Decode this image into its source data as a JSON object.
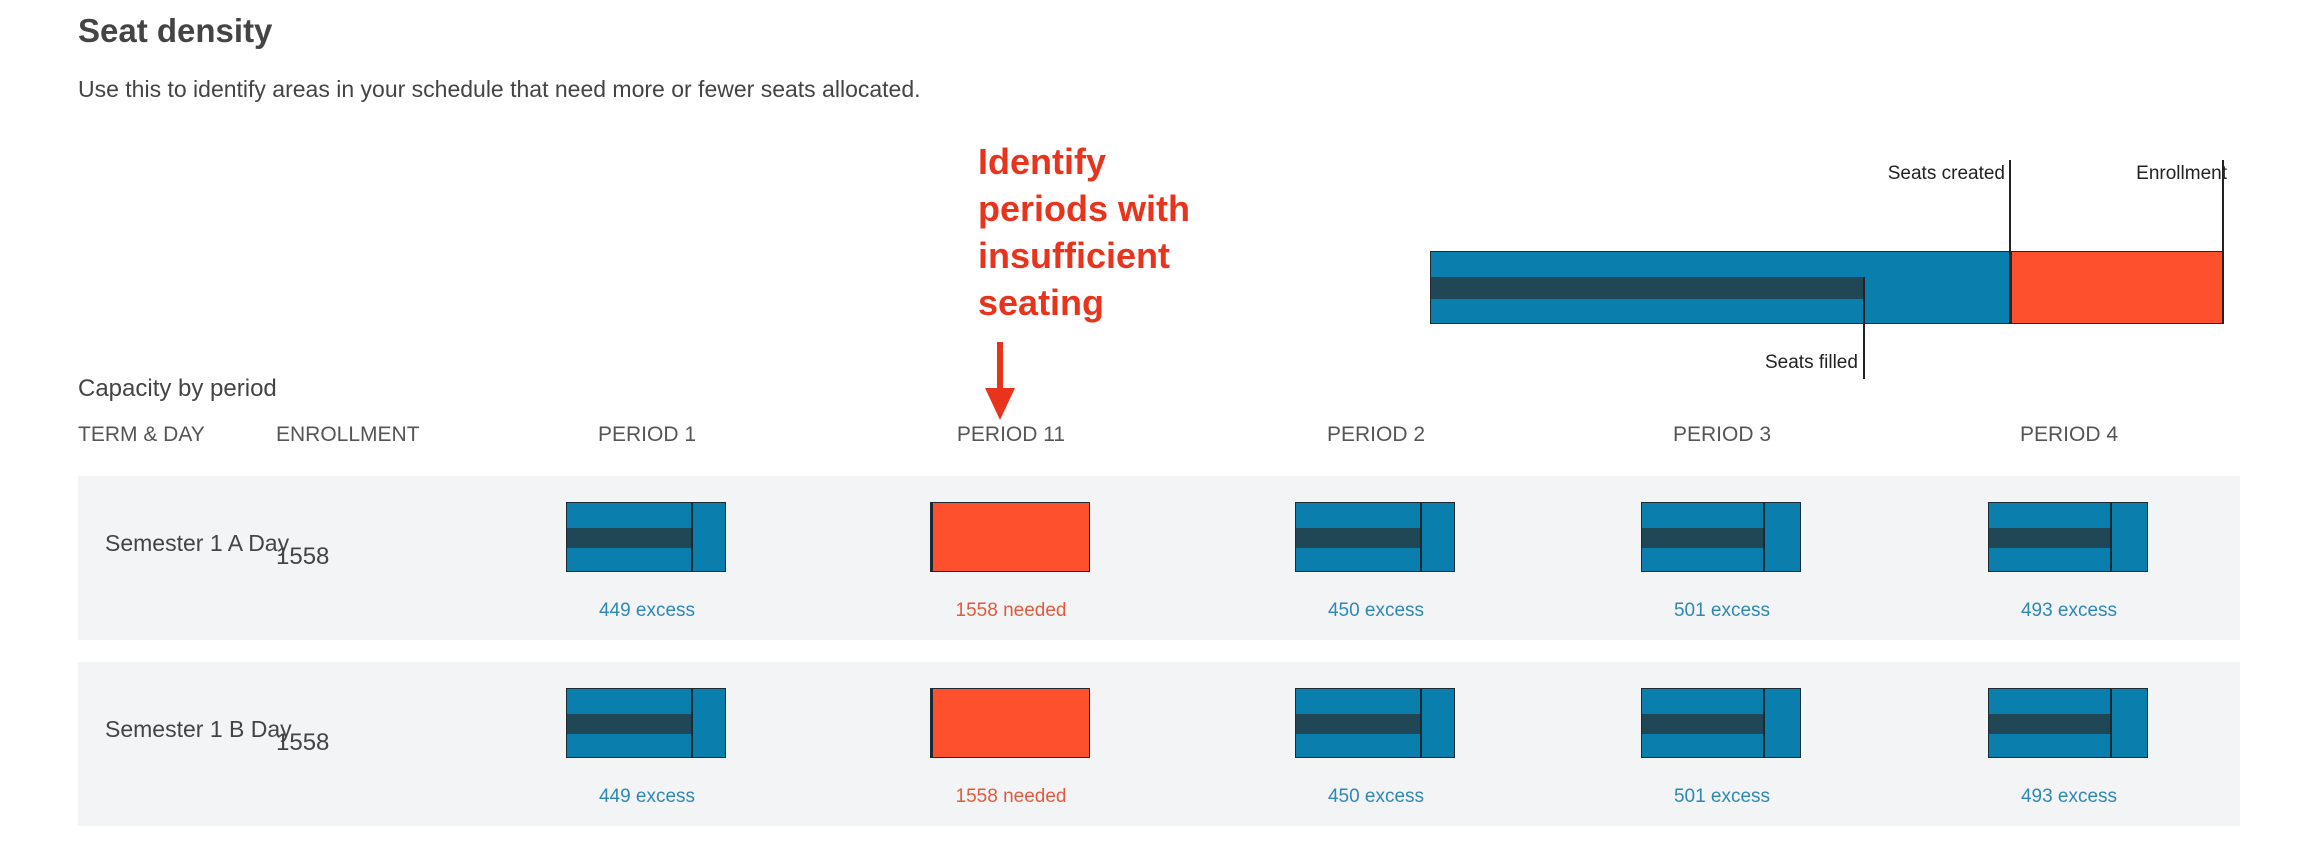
{
  "header": {
    "title": "Seat density",
    "description": "Use this to identify areas in your schedule that need more or fewer seats allocated."
  },
  "callout": {
    "lines": [
      "Identify",
      "periods with",
      "insufficient",
      "seating"
    ],
    "color": "#e8341c"
  },
  "legend": {
    "seats_created": "Seats created",
    "enrollment": "Enrollment",
    "seats_filled": "Seats filled"
  },
  "section": {
    "title": "Capacity by period"
  },
  "columns": {
    "term_day": "TERM & DAY",
    "enrollment": "ENROLLMENT",
    "periods": [
      "PERIOD 1",
      "PERIOD 11",
      "PERIOD 2",
      "PERIOD 3",
      "PERIOD 4"
    ]
  },
  "rows": [
    {
      "term": "Semester 1 A Day",
      "enrollment": "1558",
      "cells": [
        {
          "status": "ok",
          "label": "449 excess",
          "filled_fraction": 0.78
        },
        {
          "status": "bad",
          "label": "1558 needed",
          "filled_fraction": 0.0
        },
        {
          "status": "ok",
          "label": "450 excess",
          "filled_fraction": 0.78
        },
        {
          "status": "ok",
          "label": "501 excess",
          "filled_fraction": 0.76
        },
        {
          "status": "ok",
          "label": "493 excess",
          "filled_fraction": 0.76
        }
      ]
    },
    {
      "term": "Semester 1 B Day",
      "enrollment": "1558",
      "cells": [
        {
          "status": "ok",
          "label": "449 excess",
          "filled_fraction": 0.78
        },
        {
          "status": "bad",
          "label": "1558 needed",
          "filled_fraction": 0.0
        },
        {
          "status": "ok",
          "label": "450 excess",
          "filled_fraction": 0.78
        },
        {
          "status": "ok",
          "label": "501 excess",
          "filled_fraction": 0.76
        },
        {
          "status": "ok",
          "label": "493 excess",
          "filled_fraction": 0.76
        }
      ]
    }
  ],
  "colors": {
    "capacity_blue": "#0a7fad",
    "filled_dark": "#1f4756",
    "shortfall_red": "#ff502d",
    "row_band": "#f2f4f5"
  }
}
